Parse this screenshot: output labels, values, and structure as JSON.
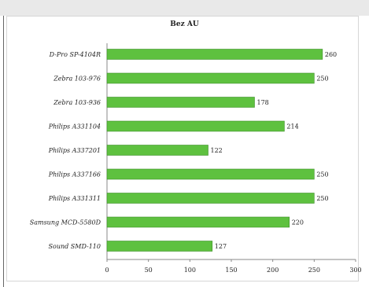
{
  "chart_data": {
    "type": "bar",
    "orientation": "horizontal",
    "title": "Bez AU",
    "categories": [
      "D-Pro SP-4104R",
      "Zebra 103-976",
      "Zebra 103-936",
      "Philips A331104",
      "Philips A337201",
      "Philips A337166",
      "Philips A331311",
      "Samsung MCD-5580D",
      "Sound SMD-110"
    ],
    "values": [
      260,
      250,
      178,
      214,
      122,
      250,
      250,
      220,
      127
    ],
    "xlim": [
      0,
      300
    ],
    "xticks": [
      0,
      50,
      100,
      150,
      200,
      250,
      300
    ],
    "bar_color": "#5ec13f",
    "grid": false,
    "legend": "none"
  }
}
